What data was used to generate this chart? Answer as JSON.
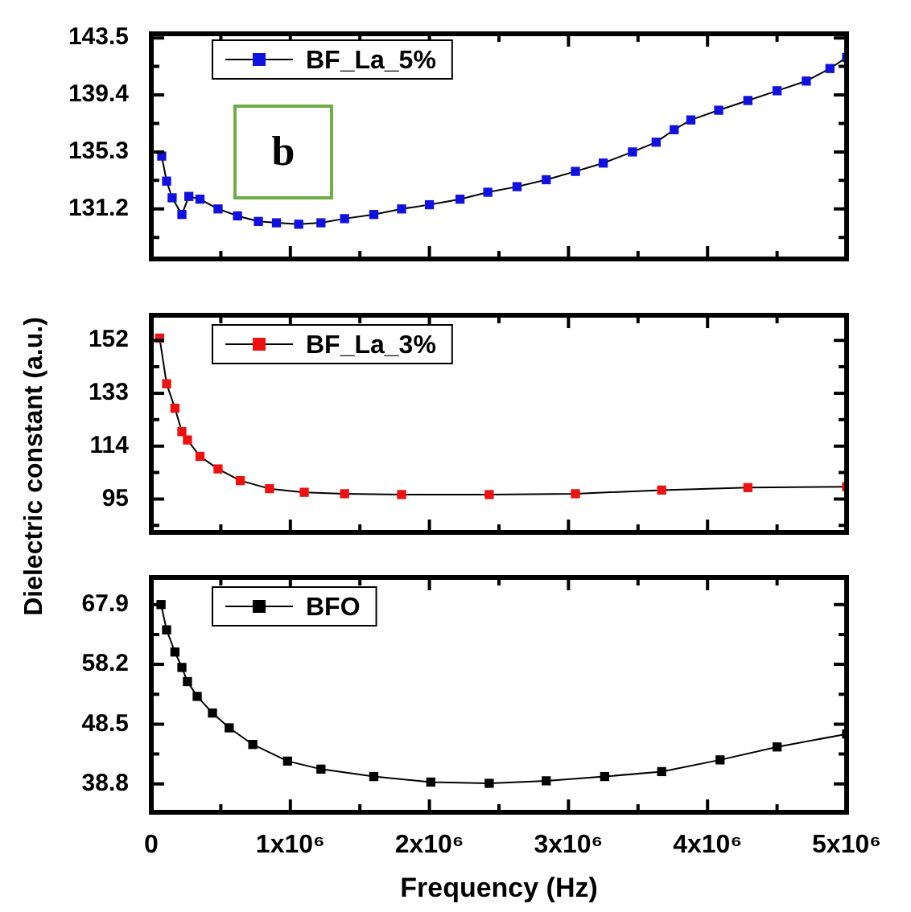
{
  "chart_data": [
    {
      "type": "line",
      "marker": "square",
      "legend": "top left",
      "tick_labels": "y",
      "annotations": [
        "b"
      ],
      "xlim": [
        0,
        5000000
      ],
      "xticks": [
        0,
        {
          "value": 500000,
          "label": null
        },
        1000000,
        {
          "value": 1500000,
          "label": null
        },
        2000000,
        {
          "value": 2500000,
          "label": null
        },
        3000000,
        {
          "value": 3500000,
          "label": null
        },
        4000000,
        {
          "value": 4500000,
          "label": null
        },
        5000000
      ],
      "ylim": [
        127.6,
        143.8
      ],
      "yticks": [
        {
          "value": 129.15,
          "label": null
        },
        131.2,
        {
          "value": 133.25,
          "label": null
        },
        135.3,
        {
          "value": 137.35,
          "label": null
        },
        139.4,
        {
          "value": 141.45,
          "label": null
        },
        143.5
      ],
      "series": [
        {
          "name": "BF_La_5%",
          "color": "#1010e0",
          "x": [
            75000,
            110000,
            150000,
            220000,
            270000,
            350000,
            480000,
            620000,
            770000,
            900000,
            1060000,
            1220000,
            1390000,
            1600000,
            1800000,
            2000000,
            2220000,
            2420000,
            2630000,
            2840000,
            3050000,
            3250000,
            3460000,
            3630000,
            3760000,
            3880000,
            4080000,
            4290000,
            4500000,
            4710000,
            4880000,
            5000000
          ],
          "values": [
            135.0,
            133.2,
            132.0,
            130.8,
            132.1,
            131.9,
            131.2,
            130.7,
            130.3,
            130.2,
            130.1,
            130.2,
            130.5,
            130.8,
            131.2,
            131.5,
            131.9,
            132.4,
            132.8,
            133.3,
            133.9,
            134.5,
            135.3,
            136.0,
            136.9,
            137.6,
            138.3,
            139.0,
            139.7,
            140.4,
            141.3,
            142.1
          ]
        }
      ]
    },
    {
      "type": "line",
      "marker": "square",
      "legend": "top left",
      "tick_labels": "y",
      "ylabel": "Dielectric constant (a.u.)",
      "xlim": [
        0,
        5000000
      ],
      "xticks": [
        0,
        {
          "value": 500000,
          "label": null
        },
        1000000,
        {
          "value": 1500000,
          "label": null
        },
        2000000,
        {
          "value": 2500000,
          "label": null
        },
        3000000,
        {
          "value": 3500000,
          "label": null
        },
        4000000,
        {
          "value": 4500000,
          "label": null
        },
        5000000
      ],
      "ylim": [
        83,
        161
      ],
      "yticks": [
        {
          "value": 85.5,
          "label": null
        },
        95,
        {
          "value": 104.5,
          "label": null
        },
        114,
        {
          "value": 123.5,
          "label": null
        },
        133,
        {
          "value": 142.5,
          "label": null
        },
        152
      ],
      "series": [
        {
          "name": "BF_La_3%",
          "color": "#ee1111",
          "x": [
            60000,
            110000,
            170000,
            220000,
            260000,
            350000,
            480000,
            640000,
            850000,
            1100000,
            1390000,
            1800000,
            2430000,
            3050000,
            3670000,
            4290000,
            5000000
          ],
          "values": [
            152.8,
            136.4,
            127.6,
            119.2,
            116.2,
            110.3,
            105.8,
            101.6,
            98.7,
            97.4,
            96.9,
            96.6,
            96.6,
            96.9,
            98.2,
            99.1,
            99.4
          ]
        }
      ]
    },
    {
      "type": "line",
      "marker": "square",
      "legend": "top left",
      "xlabel": "Frequency (Hz)",
      "xlim": [
        0,
        5000000
      ],
      "xticks": [
        0,
        {
          "value": 500000,
          "label": null
        },
        {
          "value": 1000000,
          "label": "1x10⁶"
        },
        {
          "value": 1500000,
          "label": null
        },
        {
          "value": 2000000,
          "label": "2x10⁶"
        },
        {
          "value": 2500000,
          "label": null
        },
        {
          "value": 3000000,
          "label": "3x10⁶"
        },
        {
          "value": 3500000,
          "label": null
        },
        {
          "value": 4000000,
          "label": "4x10⁶"
        },
        {
          "value": 4500000,
          "label": null
        },
        {
          "value": 5000000,
          "label": "5x10⁶"
        }
      ],
      "ylim": [
        34.2,
        72.3
      ],
      "yticks": [
        38.8,
        {
          "value": 43.65,
          "label": null
        },
        48.5,
        {
          "value": 53.35,
          "label": null
        },
        58.2,
        {
          "value": 63.05,
          "label": null
        },
        67.9
      ],
      "series": [
        {
          "name": "BFO",
          "color": "#000000",
          "x": [
            70000,
            110000,
            170000,
            220000,
            260000,
            330000,
            440000,
            560000,
            730000,
            980000,
            1220000,
            1600000,
            2010000,
            2430000,
            2840000,
            3260000,
            3670000,
            4090000,
            4500000,
            5000000
          ],
          "values": [
            67.9,
            63.8,
            60.2,
            57.7,
            55.4,
            53.0,
            50.3,
            47.9,
            45.2,
            42.5,
            41.2,
            40.0,
            39.1,
            38.9,
            39.3,
            40.0,
            40.8,
            42.7,
            44.8,
            46.9
          ]
        }
      ]
    }
  ]
}
